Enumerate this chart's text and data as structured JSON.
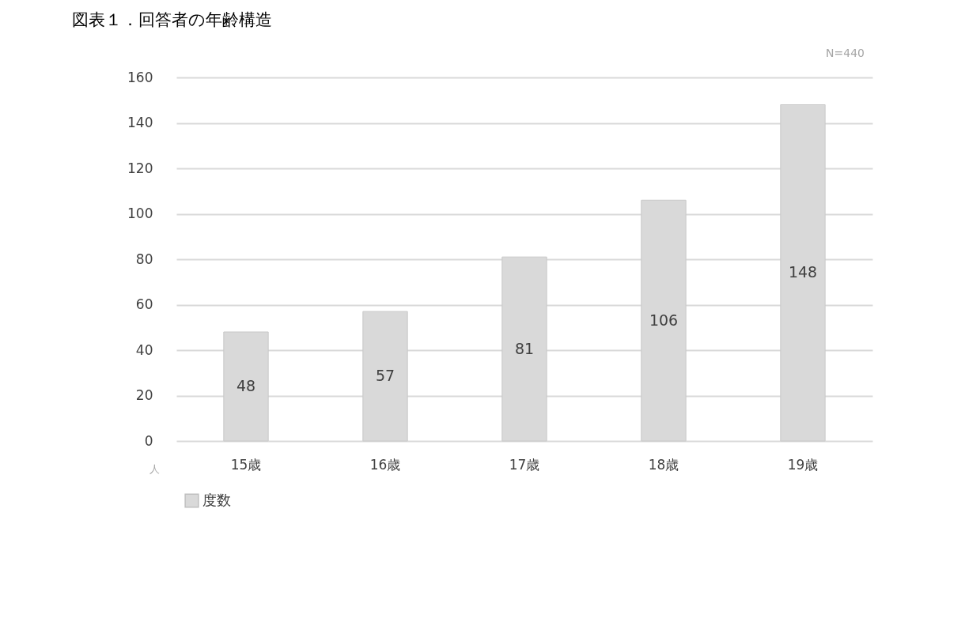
{
  "chart_data": {
    "type": "bar",
    "title": "図表１．回答者の年齢構造",
    "annotations": [
      "N=440"
    ],
    "ylabel": "人",
    "categories": [
      "15歳",
      "16歳",
      "17歳",
      "18歳",
      "19歳"
    ],
    "series": [
      {
        "name": "度数",
        "color": "#d9d9d9",
        "values": [
          48,
          57,
          81,
          106,
          148
        ]
      }
    ],
    "ylim": [
      0,
      160
    ],
    "yticks": [
      0,
      20,
      40,
      60,
      80,
      100,
      120,
      140,
      160
    ],
    "grid": "y",
    "legend": "bottom",
    "data_labels": true
  }
}
